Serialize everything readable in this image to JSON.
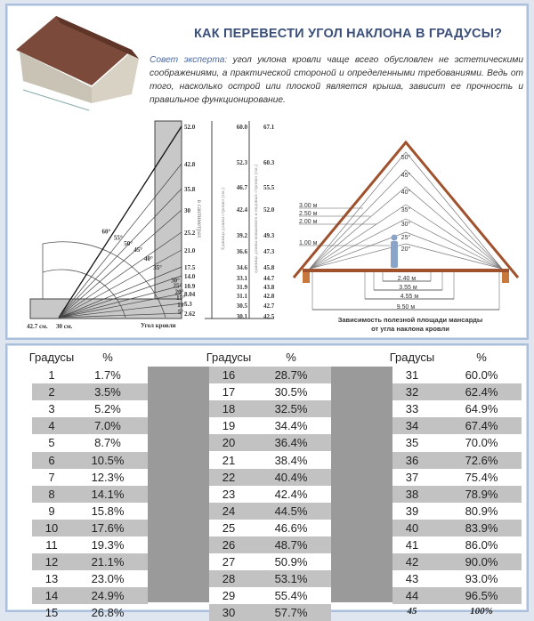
{
  "title": "КАК ПЕРЕВЕСТИ УГОЛ НАКЛОНА В ГРАДУСЫ?",
  "tip": {
    "label": "Совет эксперта:",
    "text": " угол уклона кровли чаще всего обусловлен не эстетическими соображениями, а практической стороной и определенными требованиями. Ведь от того, насколько острой или плоской является крыша, зависит ее прочность и правильное функционирование."
  },
  "angle_chart": {
    "scale": [
      "52.0",
      "42.8",
      "35.8",
      "30",
      "25.2",
      "21.0",
      "17.5",
      "14.0",
      "10.9",
      "8.04",
      "5.3",
      "2.62"
    ],
    "angles": [
      "60°",
      "55°",
      "50°",
      "45°",
      "40°",
      "35°",
      "30°",
      "25°",
      "20°",
      "15°",
      "10°",
      "5°"
    ],
    "scale_label": "в сантиметрах",
    "bottom_left": "42.7 см.",
    "bottom_mid": "30 см.",
    "bottom_right": "Угол кровли"
  },
  "rafter_table": {
    "col1_label": "Единица длины стропил (см.)",
    "col2_label": "единица длины конькового и ендовых стропил (см.)",
    "col1": [
      "60.0",
      "52.3",
      "46.7",
      "42.4",
      "39.2",
      "36.6",
      "34.6",
      "33.1",
      "31.9",
      "31.1",
      "30.5",
      "30.1"
    ],
    "col2": [
      "67.1",
      "60.3",
      "55.5",
      "52.0",
      "49.3",
      "47.3",
      "45.8",
      "44.7",
      "43.8",
      "42.8",
      "42.7",
      "42.5"
    ]
  },
  "attic": {
    "angles": [
      "50°",
      "45°",
      "40°",
      "35°",
      "30°",
      "25°",
      "20°"
    ],
    "heights": [
      "3.00 м",
      "2.50 м",
      "2.00 м",
      "1.00 м"
    ],
    "widths": [
      "2.40 м",
      "3.55 м",
      "4.55 м",
      "9.50 м"
    ],
    "caption_1": "Зависимость полезной площади мансарды",
    "caption_2": "от угла наклона кровли"
  },
  "table": {
    "header_deg": "Градусы",
    "header_pct": "%",
    "rows": [
      [
        "1",
        "1.7%"
      ],
      [
        "2",
        "3.5%"
      ],
      [
        "3",
        "5.2%"
      ],
      [
        "4",
        "7.0%"
      ],
      [
        "5",
        "8.7%"
      ],
      [
        "6",
        "10.5%"
      ],
      [
        "7",
        "12.3%"
      ],
      [
        "8",
        "14.1%"
      ],
      [
        "9",
        "15.8%"
      ],
      [
        "10",
        "17.6%"
      ],
      [
        "11",
        "19.3%"
      ],
      [
        "12",
        "21.1%"
      ],
      [
        "13",
        "23.0%"
      ],
      [
        "14",
        "24.9%"
      ],
      [
        "15",
        "26.8%"
      ],
      [
        "16",
        "28.7%"
      ],
      [
        "17",
        "30.5%"
      ],
      [
        "18",
        "32.5%"
      ],
      [
        "19",
        "34.4%"
      ],
      [
        "20",
        "36.4%"
      ],
      [
        "21",
        "38.4%"
      ],
      [
        "22",
        "40.4%"
      ],
      [
        "23",
        "42.4%"
      ],
      [
        "24",
        "44.5%"
      ],
      [
        "25",
        "46.6%"
      ],
      [
        "26",
        "48.7%"
      ],
      [
        "27",
        "50.9%"
      ],
      [
        "28",
        "53.1%"
      ],
      [
        "29",
        "55.4%"
      ],
      [
        "30",
        "57.7%"
      ],
      [
        "31",
        "60.0%"
      ],
      [
        "32",
        "62.4%"
      ],
      [
        "33",
        "64.9%"
      ],
      [
        "34",
        "67.4%"
      ],
      [
        "35",
        "70.0%"
      ],
      [
        "36",
        "72.6%"
      ],
      [
        "37",
        "75.4%"
      ],
      [
        "38",
        "78.9%"
      ],
      [
        "39",
        "80.9%"
      ],
      [
        "40",
        "83.9%"
      ],
      [
        "41",
        "86.0%"
      ],
      [
        "42",
        "90.0%"
      ],
      [
        "43",
        "93.0%"
      ],
      [
        "44",
        "96.5%"
      ],
      [
        "45",
        "100%"
      ]
    ]
  },
  "colors": {
    "title": "#3b4f7a",
    "stripe": "#c2c2c2",
    "block": "#9a9a9a",
    "frame": "#a9bfdc",
    "rafter": "#a0522d"
  }
}
